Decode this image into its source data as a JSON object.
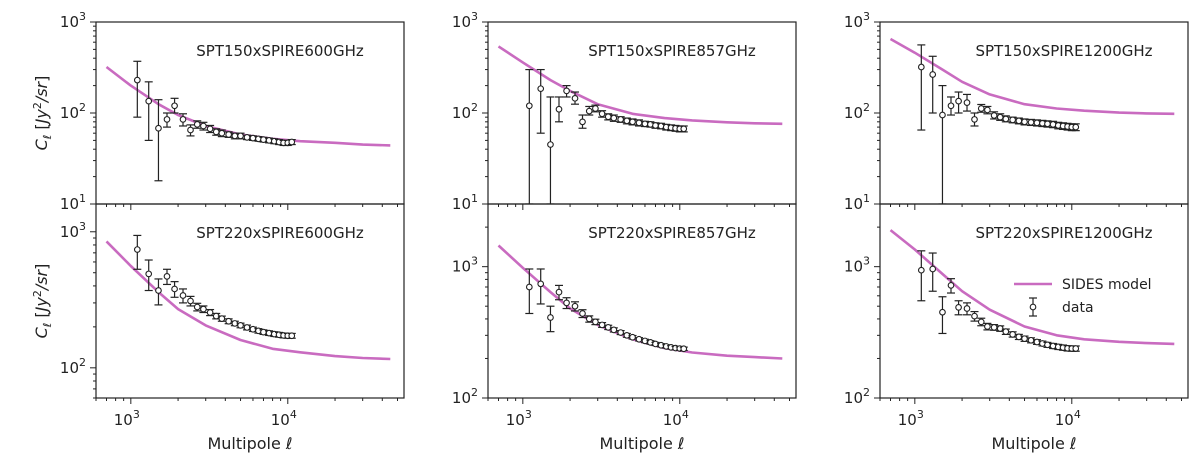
{
  "colors": {
    "model": "#c96bc0",
    "data": "#222222",
    "axis": "#222222"
  },
  "legend": {
    "model_label": "SIDES model",
    "data_label": "data"
  },
  "chart_data": [
    {
      "type": "line",
      "title": "SPT150xSPIRE600GHz",
      "xlabel": "",
      "ylabel": "C_ℓ [Jy²/sr]",
      "xscale": "log",
      "yscale": "log",
      "xlim": [
        600,
        55000
      ],
      "ylim": [
        10,
        1000
      ],
      "yticks": [
        {
          "v": 10,
          "e": "1"
        },
        {
          "v": 100,
          "e": "2"
        },
        {
          "v": 1000,
          "e": "3"
        }
      ],
      "series": [
        {
          "name": "SIDES model",
          "x": [
            700,
            1000,
            1500,
            2000,
            3000,
            5000,
            8000,
            12000,
            20000,
            30000,
            45000
          ],
          "y": [
            320,
            200,
            125,
            95,
            72,
            58,
            52,
            49,
            47,
            45,
            44
          ]
        },
        {
          "name": "data",
          "x": [
            1100,
            1300,
            1500,
            1700,
            1900,
            2150,
            2400,
            2650,
            2900,
            3200,
            3500,
            3800,
            4200,
            4600,
            5000,
            5500,
            6000,
            6500,
            7000,
            7600,
            8200,
            8800,
            9400,
            10000,
            10600
          ],
          "y": [
            230,
            135,
            68,
            85,
            120,
            85,
            65,
            75,
            72,
            67,
            62,
            60,
            58,
            56,
            56,
            54,
            53,
            52,
            51,
            50,
            49,
            48,
            47,
            47,
            48
          ],
          "ylo": [
            90,
            50,
            18,
            70,
            100,
            72,
            56,
            68,
            65,
            61,
            57,
            55,
            54,
            52,
            52,
            51,
            50,
            49,
            48,
            47,
            46,
            45,
            44,
            44,
            45
          ],
          "yhi": [
            370,
            220,
            140,
            100,
            145,
            98,
            74,
            82,
            79,
            73,
            67,
            65,
            62,
            60,
            60,
            57,
            56,
            55,
            54,
            53,
            52,
            51,
            50,
            50,
            51
          ]
        }
      ]
    },
    {
      "type": "line",
      "title": "SPT150xSPIRE857GHz",
      "xlabel": "",
      "ylabel": "",
      "xscale": "log",
      "yscale": "log",
      "xlim": [
        600,
        55000
      ],
      "ylim": [
        10,
        1000
      ],
      "yticks": [
        {
          "v": 10,
          "e": "1"
        },
        {
          "v": 100,
          "e": "2"
        },
        {
          "v": 1000,
          "e": "3"
        }
      ],
      "series": [
        {
          "name": "SIDES model",
          "x": [
            700,
            1000,
            1500,
            2000,
            3000,
            5000,
            8000,
            12000,
            20000,
            30000,
            45000
          ],
          "y": [
            540,
            360,
            230,
            175,
            125,
            98,
            88,
            83,
            79,
            77,
            76
          ]
        },
        {
          "name": "data",
          "x": [
            1100,
            1300,
            1500,
            1700,
            1900,
            2150,
            2400,
            2650,
            2900,
            3200,
            3500,
            3800,
            4200,
            4600,
            5000,
            5500,
            6000,
            6500,
            7000,
            7600,
            8200,
            8800,
            9400,
            10000,
            10600
          ],
          "y": [
            120,
            185,
            45,
            110,
            175,
            145,
            80,
            105,
            112,
            98,
            91,
            88,
            85,
            82,
            80,
            78,
            76,
            75,
            73,
            72,
            70,
            69,
            68,
            67,
            67
          ],
          "ylo": [
            10,
            60,
            10,
            80,
            150,
            125,
            68,
            95,
            103,
            90,
            84,
            81,
            79,
            76,
            74,
            72,
            71,
            70,
            68,
            67,
            65,
            64,
            63,
            62,
            62
          ],
          "yhi": [
            300,
            300,
            150,
            150,
            200,
            170,
            95,
            118,
            122,
            106,
            98,
            95,
            91,
            88,
            86,
            84,
            81,
            80,
            78,
            77,
            75,
            74,
            73,
            72,
            72
          ]
        }
      ]
    },
    {
      "type": "line",
      "title": "SPT150xSPIRE1200GHz",
      "xlabel": "",
      "ylabel": "",
      "xscale": "log",
      "yscale": "log",
      "xlim": [
        600,
        55000
      ],
      "ylim": [
        10,
        1000
      ],
      "yticks": [
        {
          "v": 10,
          "e": "1"
        },
        {
          "v": 100,
          "e": "2"
        },
        {
          "v": 1000,
          "e": "3"
        }
      ],
      "series": [
        {
          "name": "SIDES model",
          "x": [
            700,
            1000,
            1500,
            2000,
            3000,
            5000,
            8000,
            12000,
            20000,
            30000,
            45000
          ],
          "y": [
            650,
            460,
            300,
            220,
            160,
            125,
            112,
            106,
            101,
            99,
            98
          ]
        },
        {
          "name": "data",
          "x": [
            1100,
            1300,
            1500,
            1700,
            1900,
            2150,
            2400,
            2650,
            2900,
            3200,
            3500,
            3800,
            4200,
            4600,
            5000,
            5500,
            6000,
            6500,
            7000,
            7600,
            8200,
            8800,
            9400,
            10000,
            10600
          ],
          "y": [
            320,
            265,
            95,
            120,
            135,
            130,
            85,
            112,
            108,
            94,
            90,
            86,
            84,
            82,
            80,
            79,
            78,
            77,
            76,
            75,
            73,
            72,
            71,
            70,
            70
          ],
          "ylo": [
            65,
            100,
            10,
            95,
            100,
            105,
            72,
            102,
            98,
            86,
            83,
            80,
            78,
            76,
            74,
            73,
            72,
            71,
            70,
            69,
            67,
            66,
            65,
            64,
            64
          ],
          "yhi": [
            560,
            420,
            200,
            150,
            170,
            160,
            100,
            124,
            118,
            103,
            98,
            93,
            90,
            88,
            86,
            85,
            84,
            83,
            82,
            81,
            79,
            78,
            77,
            76,
            76
          ]
        }
      ]
    },
    {
      "type": "line",
      "title": "SPT220xSPIRE600GHz",
      "xlabel": "Multipole ℓ",
      "ylabel": "C_ℓ [Jy²/sr]",
      "xscale": "log",
      "yscale": "log",
      "xlim": [
        600,
        55000
      ],
      "ylim": [
        60,
        1600
      ],
      "yticks": [
        {
          "v": 100,
          "e": "2"
        },
        {
          "v": 1000,
          "e": "3"
        }
      ],
      "series": [
        {
          "name": "SIDES model",
          "x": [
            700,
            1000,
            1500,
            2000,
            3000,
            5000,
            8000,
            12000,
            20000,
            30000,
            45000
          ],
          "y": [
            850,
            560,
            360,
            270,
            205,
            160,
            138,
            130,
            122,
            118,
            116
          ]
        },
        {
          "name": "data",
          "x": [
            1100,
            1300,
            1500,
            1700,
            1900,
            2150,
            2400,
            2650,
            2900,
            3200,
            3500,
            3800,
            4200,
            4600,
            5000,
            5500,
            6000,
            6500,
            7000,
            7600,
            8200,
            8800,
            9400,
            10000,
            10600
          ],
          "y": [
            740,
            490,
            370,
            470,
            380,
            340,
            310,
            280,
            270,
            255,
            240,
            230,
            220,
            212,
            205,
            198,
            192,
            187,
            183,
            180,
            177,
            175,
            173,
            172,
            172
          ],
          "ylo": [
            530,
            370,
            290,
            410,
            330,
            300,
            285,
            262,
            255,
            242,
            229,
            220,
            211,
            204,
            197,
            190,
            185,
            180,
            176,
            173,
            170,
            168,
            166,
            165,
            165
          ],
          "yhi": [
            940,
            620,
            450,
            530,
            430,
            380,
            335,
            298,
            285,
            268,
            251,
            240,
            229,
            220,
            213,
            206,
            199,
            194,
            190,
            187,
            184,
            182,
            180,
            179,
            179
          ]
        }
      ]
    },
    {
      "type": "line",
      "title": "SPT220xSPIRE857GHz",
      "xlabel": "Multipole ℓ",
      "ylabel": "",
      "xscale": "log",
      "yscale": "log",
      "xlim": [
        600,
        55000
      ],
      "ylim": [
        100,
        3000
      ],
      "yticks": [
        {
          "v": 100,
          "e": "2"
        },
        {
          "v": 1000,
          "e": "3"
        }
      ],
      "series": [
        {
          "name": "SIDES model",
          "x": [
            700,
            1000,
            1500,
            2000,
            3000,
            5000,
            8000,
            12000,
            20000,
            30000,
            45000
          ],
          "y": [
            1450,
            980,
            640,
            480,
            360,
            280,
            240,
            222,
            210,
            205,
            200
          ]
        },
        {
          "name": "data",
          "x": [
            1100,
            1300,
            1500,
            1700,
            1900,
            2150,
            2400,
            2650,
            2900,
            3200,
            3500,
            3800,
            4200,
            4600,
            5000,
            5500,
            6000,
            6500,
            7000,
            7600,
            8200,
            8800,
            9400,
            10000,
            10600
          ],
          "y": [
            700,
            740,
            410,
            640,
            530,
            500,
            440,
            400,
            380,
            360,
            345,
            330,
            315,
            300,
            290,
            280,
            272,
            265,
            258,
            252,
            247,
            243,
            240,
            238,
            237
          ],
          "ylo": [
            440,
            520,
            320,
            560,
            480,
            460,
            410,
            378,
            362,
            345,
            332,
            318,
            304,
            290,
            281,
            272,
            264,
            257,
            251,
            245,
            240,
            236,
            233,
            231,
            230
          ],
          "yhi": [
            960,
            960,
            500,
            720,
            580,
            540,
            470,
            422,
            398,
            375,
            358,
            342,
            326,
            310,
            299,
            288,
            280,
            273,
            265,
            259,
            254,
            250,
            247,
            245,
            244
          ]
        }
      ]
    },
    {
      "type": "line",
      "title": "SPT220xSPIRE1200GHz",
      "xlabel": "Multipole ℓ",
      "ylabel": "",
      "xscale": "log",
      "yscale": "log",
      "xlim": [
        600,
        55000
      ],
      "ylim": [
        100,
        3000
      ],
      "yticks": [
        {
          "v": 100,
          "e": "2"
        },
        {
          "v": 1000,
          "e": "3"
        }
      ],
      "series": [
        {
          "name": "SIDES model",
          "x": [
            700,
            1000,
            1500,
            2000,
            3000,
            5000,
            8000,
            12000,
            20000,
            30000,
            45000
          ],
          "y": [
            1900,
            1350,
            880,
            650,
            470,
            350,
            300,
            280,
            268,
            262,
            258
          ]
        },
        {
          "name": "data",
          "x": [
            1100,
            1300,
            1500,
            1700,
            1900,
            2150,
            2400,
            2650,
            2900,
            3200,
            3500,
            3800,
            4200,
            4600,
            5000,
            5500,
            6000,
            6500,
            7000,
            7600,
            8200,
            8800,
            9400,
            10000,
            10600
          ],
          "y": [
            940,
            960,
            450,
            720,
            490,
            480,
            420,
            380,
            350,
            345,
            338,
            320,
            305,
            292,
            283,
            275,
            267,
            260,
            254,
            249,
            245,
            242,
            239,
            238,
            238
          ],
          "ylo": [
            550,
            650,
            310,
            630,
            430,
            430,
            385,
            355,
            330,
            328,
            322,
            305,
            291,
            279,
            270,
            263,
            256,
            249,
            243,
            238,
            234,
            231,
            228,
            227,
            227
          ],
          "yhi": [
            1320,
            1270,
            590,
            810,
            550,
            530,
            455,
            405,
            370,
            362,
            354,
            335,
            319,
            305,
            296,
            287,
            278,
            271,
            265,
            260,
            256,
            253,
            250,
            249,
            249
          ]
        }
      ]
    }
  ]
}
